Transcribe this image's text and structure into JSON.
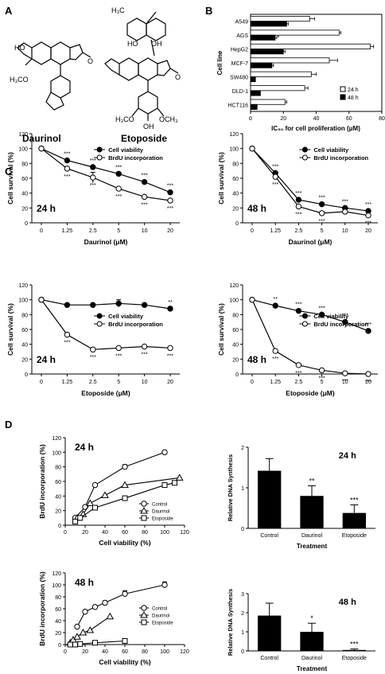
{
  "panel_labels": {
    "A": "A",
    "B": "B",
    "C": "C",
    "D": "D"
  },
  "structures": {
    "left_name": "Daurinol",
    "right_name": "Etoposide"
  },
  "chart_data": [
    {
      "id": "B",
      "type": "bar",
      "orientation": "horizontal",
      "categories": [
        "A549",
        "AGS",
        "HepG2",
        "MCF-7",
        "SW480",
        "DLD-1",
        "HCT116"
      ],
      "series": [
        {
          "name": "24 h",
          "fill": "white",
          "values": [
            36,
            54,
            73,
            48,
            37,
            33,
            21
          ],
          "errors": [
            3,
            1,
            2,
            5,
            3,
            2,
            1
          ]
        },
        {
          "name": "48 h",
          "fill": "black",
          "values": [
            22,
            15,
            20,
            13,
            3,
            6,
            4
          ],
          "errors": [
            1,
            1,
            1,
            1,
            0,
            0,
            0
          ]
        }
      ],
      "significance": [
        "",
        "*",
        "",
        "",
        "",
        "",
        ""
      ],
      "xlabel": "IC₅₀ for cell proliferation (μM)",
      "ylabel": "Cell line",
      "xlim": [
        0,
        80
      ],
      "xticks": [
        "0",
        "20",
        "40",
        "60",
        "80"
      ],
      "legend": "bottom-right"
    },
    {
      "id": "C1",
      "type": "line",
      "panel_label": "24 h",
      "categories": [
        "0",
        "1.25",
        "2.5",
        "5",
        "10",
        "20"
      ],
      "series": [
        {
          "name": "Cell viability",
          "marker": "filled",
          "values": [
            100,
            84,
            75,
            66,
            55,
            41
          ],
          "errors": [
            0,
            0,
            0,
            0,
            0,
            0
          ]
        },
        {
          "name": "BrdU incorporation",
          "marker": "open",
          "values": [
            100,
            73,
            61,
            46,
            35,
            30
          ],
          "errors": [
            0,
            0,
            7,
            0,
            0,
            0
          ]
        }
      ],
      "star_pos": {
        "top": [
          1,
          2,
          3,
          4,
          5
        ],
        "bottom": [
          1,
          2,
          3,
          4,
          5
        ]
      },
      "stars": {
        "top": [
          "***",
          "***",
          "***",
          "***",
          "***"
        ],
        "bottom": [
          "***",
          "***",
          "***",
          "***",
          "***"
        ]
      },
      "xlabel": "Daurinol (μM)",
      "ylabel": "Cell survival (%)",
      "ylim": [
        0,
        120
      ],
      "yticks": [
        "0",
        "20",
        "40",
        "60",
        "80",
        "100",
        "120"
      ],
      "legend": "top-right"
    },
    {
      "id": "C2",
      "type": "line",
      "panel_label": "48 h",
      "categories": [
        "0",
        "1.25",
        "2.5",
        "5",
        "10",
        "20"
      ],
      "series": [
        {
          "name": "Cell viability",
          "marker": "filled",
          "values": [
            100,
            67,
            31,
            25,
            20,
            16
          ],
          "errors": [
            0,
            0,
            0,
            0,
            0,
            0
          ]
        },
        {
          "name": "BrdU incorporation",
          "marker": "open",
          "values": [
            100,
            62,
            22,
            13,
            15,
            10
          ],
          "errors": [
            0,
            0,
            0,
            0,
            0,
            0
          ]
        }
      ],
      "star_pos": {
        "top": [
          1,
          2,
          3,
          4,
          5
        ],
        "bottom": [
          1,
          2,
          3,
          5
        ]
      },
      "stars": {
        "top": [
          "***",
          "***",
          "***",
          "***",
          "***"
        ],
        "bottom": [
          "***",
          "***",
          "***",
          "***"
        ]
      },
      "xlabel": "Daurinol (μM)",
      "ylabel": "Cell survival (%)",
      "ylim": [
        0,
        120
      ],
      "yticks": [
        "0",
        "20",
        "40",
        "60",
        "80",
        "100",
        "120"
      ],
      "legend": "top-right"
    },
    {
      "id": "C3",
      "type": "line",
      "panel_label": "24 h",
      "categories": [
        "0",
        "1.25",
        "2.5",
        "5",
        "10",
        "20"
      ],
      "series": [
        {
          "name": "Cell viability",
          "marker": "filled",
          "values": [
            100,
            93,
            93,
            95,
            93,
            88
          ],
          "errors": [
            0,
            0,
            0,
            5,
            0,
            0
          ]
        },
        {
          "name": "BrdU incorporation",
          "marker": "open",
          "values": [
            100,
            53,
            33,
            35,
            37,
            35
          ],
          "errors": [
            0,
            0,
            0,
            0,
            0,
            0
          ]
        }
      ],
      "star_pos": {
        "top": [
          5
        ],
        "bottom": [
          1,
          2,
          3,
          4,
          5
        ]
      },
      "stars": {
        "top": [
          "**"
        ],
        "bottom": [
          "***",
          "***",
          "***",
          "***",
          "***"
        ]
      },
      "xlabel": "Etoposide (μM)",
      "ylabel": "Cell survival (%)",
      "ylim": [
        0,
        120
      ],
      "yticks": [
        "0",
        "20",
        "40",
        "60",
        "80",
        "100",
        "120"
      ],
      "legend": "center-right"
    },
    {
      "id": "C4",
      "type": "line",
      "panel_label": "48 h",
      "categories": [
        "0",
        "1.25",
        "2.5",
        "5",
        "10",
        "20"
      ],
      "series": [
        {
          "name": "Cell viability",
          "marker": "filled",
          "values": [
            100,
            92,
            85,
            80,
            70,
            58
          ],
          "errors": [
            0,
            0,
            0,
            0,
            0,
            0
          ]
        },
        {
          "name": "BrdU incorporation",
          "marker": "open",
          "values": [
            100,
            31,
            12,
            5,
            1,
            0
          ],
          "errors": [
            0,
            0,
            0,
            0,
            0,
            0
          ]
        }
      ],
      "star_pos": {
        "top": [
          1,
          2,
          3,
          4,
          5
        ],
        "bottom": [
          1,
          2,
          3,
          4,
          5
        ]
      },
      "stars": {
        "top": [
          "**",
          "***",
          "***",
          "***",
          "***"
        ],
        "bottom": [
          "***",
          "***",
          "***",
          "***",
          "***"
        ]
      },
      "xlabel": "Etoposide (μM)",
      "ylabel": "Cell survival (%)",
      "ylim": [
        0,
        120
      ],
      "yticks": [
        "0",
        "20",
        "40",
        "60",
        "80",
        "100",
        "120"
      ],
      "legend": "center-right"
    },
    {
      "id": "D1",
      "type": "scatter",
      "panel_label": "24 h",
      "series": [
        {
          "name": "Control",
          "marker": "circle",
          "x": [
            10,
            20,
            30,
            60,
            100
          ],
          "y": [
            10,
            25,
            55,
            80,
            100
          ],
          "errors": [
            0,
            0,
            0,
            3,
            0
          ]
        },
        {
          "name": "Daurinol",
          "marker": "triangle",
          "x": [
            12,
            18,
            25,
            40,
            60,
            115
          ],
          "y": [
            10,
            15,
            30,
            41,
            55,
            65
          ]
        },
        {
          "name": "Etoposide",
          "marker": "square",
          "x": [
            10,
            15,
            30,
            60,
            100,
            110
          ],
          "y": [
            5,
            10,
            24,
            37,
            55,
            58
          ]
        }
      ],
      "xlabel": "Cell viability (%)",
      "ylabel": "BrdU incorporation (%)",
      "xlim": [
        0,
        120
      ],
      "ylim": [
        0,
        120
      ],
      "xticks": [
        "0",
        "20",
        "40",
        "60",
        "80",
        "100",
        "120"
      ],
      "yticks": [
        "0",
        "20",
        "40",
        "60",
        "80",
        "100",
        "120"
      ],
      "legend": "bottom-right"
    },
    {
      "id": "D2",
      "type": "bar",
      "panel_label": "24 h",
      "categories": [
        "Control",
        "Daurinol",
        "Etoposide"
      ],
      "values": [
        1.42,
        0.8,
        0.38
      ],
      "errors": [
        0.3,
        0.25,
        0.2
      ],
      "significance": [
        "",
        "**",
        "***"
      ],
      "xlabel": "Treatment",
      "ylabel": "Relative DNA Synthesis",
      "ylim": [
        0,
        2
      ],
      "yticks": [
        "0",
        "1",
        "2"
      ]
    },
    {
      "id": "D3",
      "type": "scatter",
      "panel_label": "48 h",
      "series": [
        {
          "name": "Control",
          "marker": "circle",
          "x": [
            12,
            20,
            30,
            40,
            60,
            100
          ],
          "y": [
            30,
            55,
            63,
            70,
            85,
            100
          ],
          "errors": [
            0,
            0,
            0,
            3,
            5,
            5
          ]
        },
        {
          "name": "Daurinol",
          "marker": "triangle",
          "x": [
            5,
            8,
            12,
            18,
            25,
            45
          ],
          "y": [
            3,
            8,
            13,
            20,
            24,
            47
          ]
        },
        {
          "name": "Etoposide",
          "marker": "square",
          "x": [
            5,
            10,
            15,
            30,
            60
          ],
          "y": [
            0,
            0,
            1,
            3,
            6
          ]
        }
      ],
      "xlabel": "Cell viability (%)",
      "ylabel": "BrdU incorporation (%)",
      "xlim": [
        0,
        120
      ],
      "ylim": [
        0,
        120
      ],
      "xticks": [
        "0",
        "20",
        "40",
        "60",
        "80",
        "100",
        "120"
      ],
      "yticks": [
        "0",
        "20",
        "40",
        "60",
        "80",
        "100",
        "120"
      ],
      "legend": "center-right"
    },
    {
      "id": "D4",
      "type": "bar",
      "panel_label": "48 h",
      "categories": [
        "Control",
        "Daurinol",
        "Etoposide"
      ],
      "values": [
        1.85,
        1.0,
        0.05
      ],
      "errors": [
        0.65,
        0.45,
        0.05
      ],
      "significance": [
        "",
        "*",
        "***"
      ],
      "xlabel": "Treatment",
      "ylabel": "Relative DNA Synthesis",
      "ylim": [
        0,
        3
      ],
      "yticks": [
        "0",
        "1",
        "2",
        "3"
      ]
    }
  ]
}
